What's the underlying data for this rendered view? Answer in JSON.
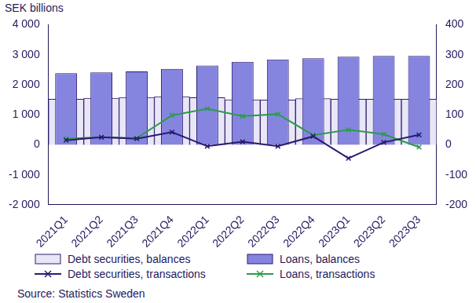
{
  "chart_data": {
    "type": "bar",
    "ylabel": "SEK billions",
    "source": "Source: Statistics Sweden",
    "categories": [
      "2021Q1",
      "2021Q2",
      "2021Q3",
      "2021Q4",
      "2022Q1",
      "2022Q2",
      "2022Q3",
      "2022Q4",
      "2023Q1",
      "2023Q2",
      "2023Q3"
    ],
    "series": [
      {
        "name": "Debt securities, balances",
        "type": "bar",
        "color": "#e8e6f7",
        "values": [
          1520,
          1550,
          1580,
          1600,
          1570,
          1500,
          1490,
          1540,
          1520,
          1520,
          1520
        ]
      },
      {
        "name": "Loans, balances",
        "type": "bar",
        "color": "#8585e0",
        "values": [
          2380,
          2410,
          2440,
          2530,
          2640,
          2760,
          2840,
          2880,
          2930,
          2960,
          2960
        ]
      },
      {
        "name": "Debt securities, transactions",
        "type": "line",
        "axis": "y2",
        "color": "#2a1a6e",
        "marker": "x",
        "line_style": "solid",
        "values": [
          15,
          25,
          20,
          42,
          -5,
          10,
          -5,
          28,
          -45,
          8,
          33
        ]
      },
      {
        "name": "Loans, transactions",
        "type": "line",
        "axis": "y2",
        "color": "#2e9a4a",
        "marker": "x",
        "line_style": "solid",
        "values": [
          20,
          25,
          22,
          98,
          120,
          95,
          102,
          32,
          50,
          35,
          -8
        ]
      }
    ],
    "ylim": [
      -2000,
      4000
    ],
    "yticks": [
      {
        "value": -2000,
        "label": "-2 000"
      },
      {
        "value": -1000,
        "label": "-1 000"
      },
      0,
      {
        "value": 1000,
        "label": "1 000"
      },
      {
        "value": 2000,
        "label": "2 000"
      },
      {
        "value": 3000,
        "label": "3 000"
      },
      {
        "value": 4000,
        "label": "4 000"
      }
    ],
    "y2lim": [
      -200,
      400
    ],
    "y2ticks": [
      -200,
      -100,
      0,
      100,
      200,
      300,
      400
    ],
    "grid": false,
    "legend": "bottom"
  }
}
